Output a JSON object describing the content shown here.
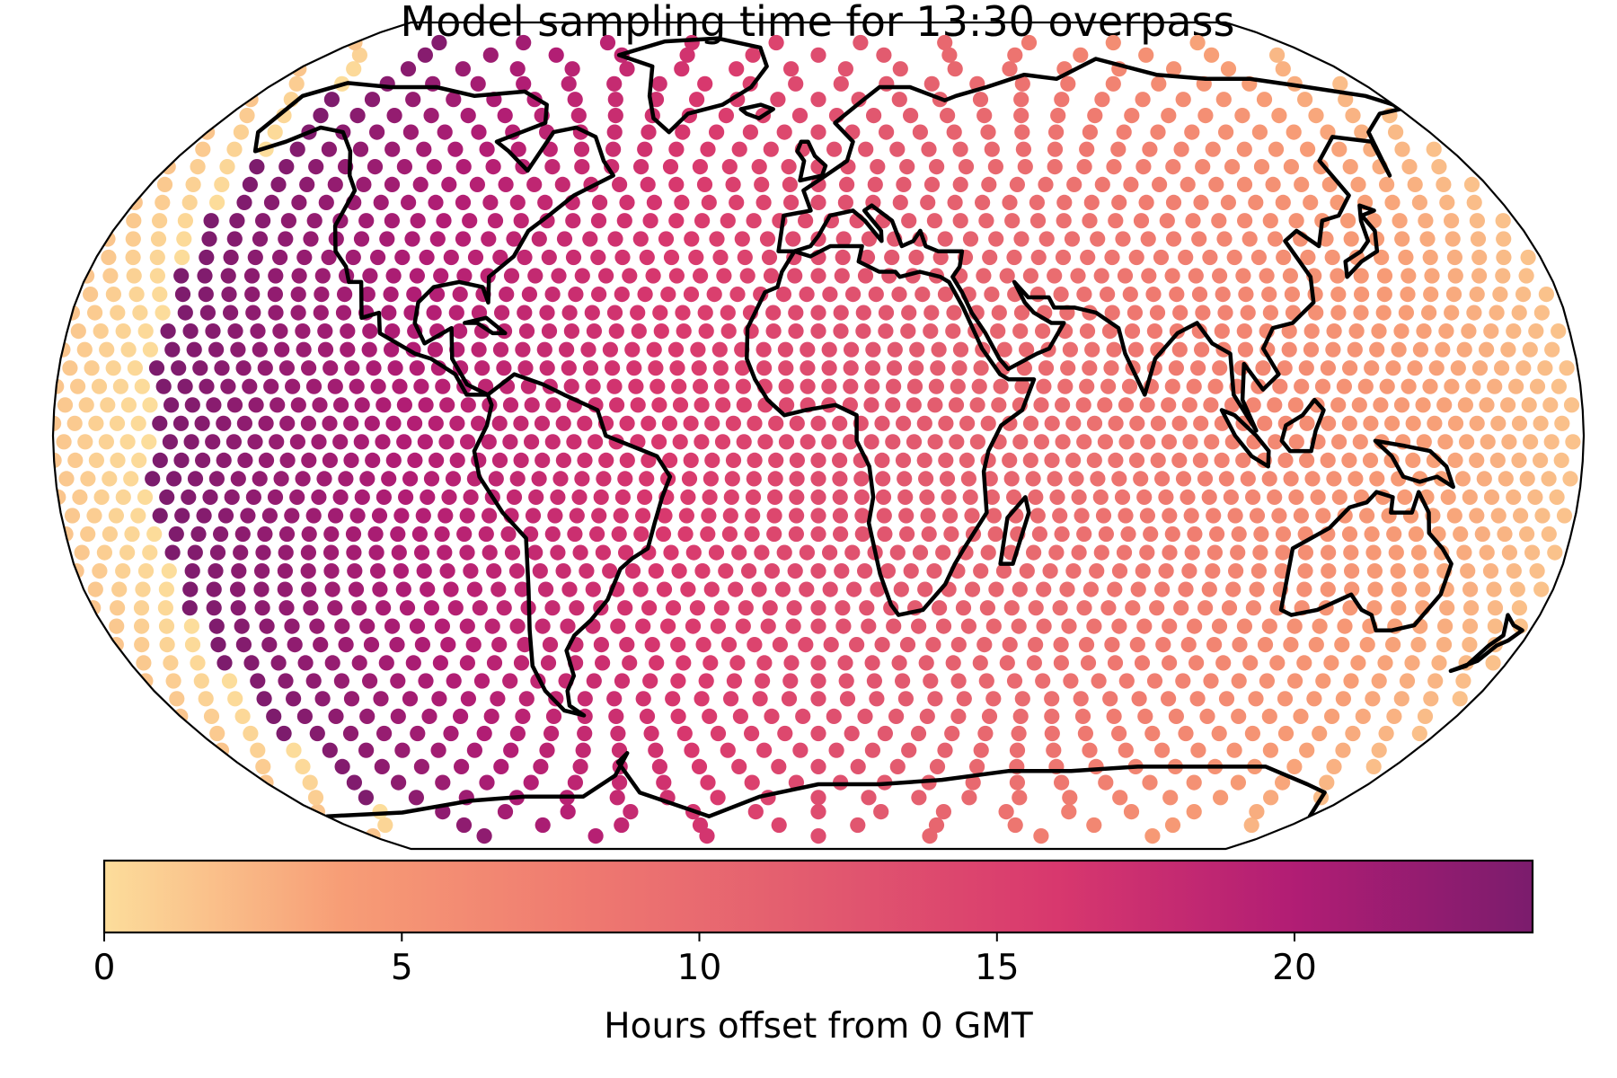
{
  "chart_data": {
    "type": "scatter",
    "title": "Model sampling time for 13:30 overpass",
    "projection": "robinson",
    "basemap": "coastlines",
    "colormap": "magma_r",
    "color_stops": [
      "#fcdd9b",
      "#f79d76",
      "#ef7a70",
      "#e25a6f",
      "#d8386e",
      "#b11d74",
      "#7b1c6d"
    ],
    "grid": {
      "lon_step_equator_deg": 5,
      "lat_step_deg": 3.6,
      "lat_range": [
        -84,
        84
      ]
    },
    "value_rule": "hours offset = (13.5 - longitude/15) mod 24",
    "value_range": [
      0,
      24
    ],
    "colorbar": {
      "label": "Hours offset from 0 GMT",
      "orientation": "horizontal",
      "vmin": 0,
      "vmax": 24,
      "ticks": [
        0,
        5,
        10,
        15,
        20
      ]
    },
    "xlabel": "",
    "ylabel": ""
  }
}
